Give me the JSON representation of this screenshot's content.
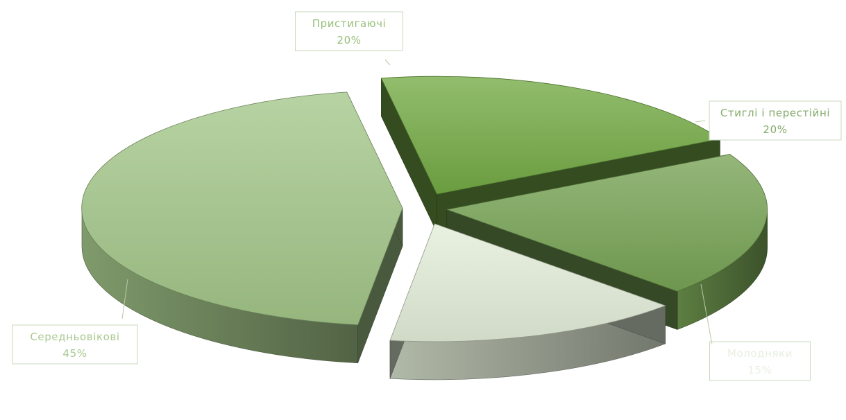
{
  "chart_data": {
    "type": "pie",
    "title": "",
    "categories": [
      "Пристигаючі",
      "Стиглі і перестійні",
      "Молодняки",
      "Середньовікові"
    ],
    "values": [
      20,
      20,
      15,
      45
    ],
    "value_labels": [
      "20%",
      "20%",
      "15%",
      "45%"
    ],
    "colors": [
      "#73aa44",
      "#77a355",
      "#e3edd8",
      "#a3c689"
    ],
    "label_text_colors": [
      "#96bf78",
      "#83aa6a",
      "#e8efe2",
      "#a8c890"
    ],
    "legend": "none",
    "style": "3d-exploded"
  }
}
